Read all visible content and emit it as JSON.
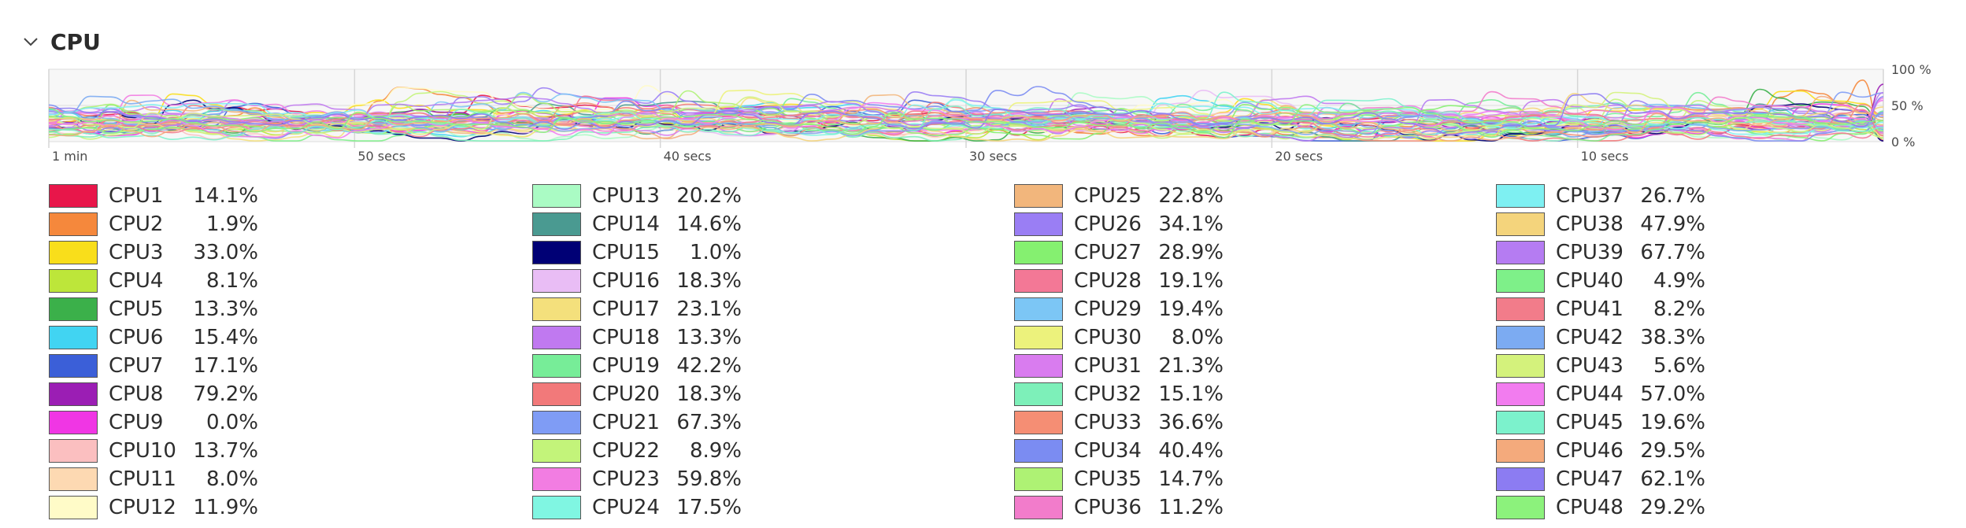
{
  "section": {
    "title": "CPU",
    "chevron_icon": "chevron-down-icon"
  },
  "chart_data": {
    "type": "line",
    "x_ticks": [
      "1 min",
      "50 secs",
      "40 secs",
      "30 secs",
      "20 secs",
      "10 secs"
    ],
    "y_ticks": [
      "100 %",
      "50 %",
      "0 %"
    ],
    "ylim": [
      0,
      100
    ],
    "grid": true
  },
  "cpus": [
    {
      "name": "CPU1",
      "value": "14.1%",
      "color": "#e8164a"
    },
    {
      "name": "CPU2",
      "value": "1.9%",
      "color": "#f5883c"
    },
    {
      "name": "CPU3",
      "value": "33.0%",
      "color": "#f9de1b"
    },
    {
      "name": "CPU4",
      "value": "8.1%",
      "color": "#bde63a"
    },
    {
      "name": "CPU5",
      "value": "13.3%",
      "color": "#3bb04a"
    },
    {
      "name": "CPU6",
      "value": "15.4%",
      "color": "#41d4f2"
    },
    {
      "name": "CPU7",
      "value": "17.1%",
      "color": "#3b5fd8"
    },
    {
      "name": "CPU8",
      "value": "79.2%",
      "color": "#9b1eb4"
    },
    {
      "name": "CPU9",
      "value": "0.0%",
      "color": "#f036e4"
    },
    {
      "name": "CPU10",
      "value": "13.7%",
      "color": "#fbbfc0"
    },
    {
      "name": "CPU11",
      "value": "8.0%",
      "color": "#fdd9b2"
    },
    {
      "name": "CPU12",
      "value": "11.9%",
      "color": "#fffbc8"
    },
    {
      "name": "CPU13",
      "value": "20.2%",
      "color": "#aafbc4"
    },
    {
      "name": "CPU14",
      "value": "14.6%",
      "color": "#4a9a91"
    },
    {
      "name": "CPU15",
      "value": "1.0%",
      "color": "#000075"
    },
    {
      "name": "CPU16",
      "value": "18.3%",
      "color": "#e9bdf5"
    },
    {
      "name": "CPU17",
      "value": "23.1%",
      "color": "#f4e07c"
    },
    {
      "name": "CPU18",
      "value": "13.3%",
      "color": "#c079f0"
    },
    {
      "name": "CPU19",
      "value": "42.2%",
      "color": "#77ed98"
    },
    {
      "name": "CPU20",
      "value": "18.3%",
      "color": "#f2797a"
    },
    {
      "name": "CPU21",
      "value": "67.3%",
      "color": "#7f9cf5"
    },
    {
      "name": "CPU22",
      "value": "8.9%",
      "color": "#c3f47a"
    },
    {
      "name": "CPU23",
      "value": "59.8%",
      "color": "#f27de2"
    },
    {
      "name": "CPU24",
      "value": "17.5%",
      "color": "#80f6e2"
    },
    {
      "name": "CPU25",
      "value": "22.8%",
      "color": "#f2b67c"
    },
    {
      "name": "CPU26",
      "value": "34.1%",
      "color": "#9a7ef4"
    },
    {
      "name": "CPU27",
      "value": "28.9%",
      "color": "#85f070"
    },
    {
      "name": "CPU28",
      "value": "19.1%",
      "color": "#f37896"
    },
    {
      "name": "CPU29",
      "value": "19.4%",
      "color": "#7cc6f5"
    },
    {
      "name": "CPU30",
      "value": "8.0%",
      "color": "#ecf27c"
    },
    {
      "name": "CPU31",
      "value": "21.3%",
      "color": "#d97cef"
    },
    {
      "name": "CPU32",
      "value": "15.1%",
      "color": "#7df0b9"
    },
    {
      "name": "CPU33",
      "value": "36.6%",
      "color": "#f58e74"
    },
    {
      "name": "CPU34",
      "value": "40.4%",
      "color": "#7b8cf2"
    },
    {
      "name": "CPU35",
      "value": "14.7%",
      "color": "#aef274"
    },
    {
      "name": "CPU36",
      "value": "11.2%",
      "color": "#f27ccb"
    },
    {
      "name": "CPU37",
      "value": "26.7%",
      "color": "#7ef0f2"
    },
    {
      "name": "CPU38",
      "value": "47.9%",
      "color": "#f4d47c"
    },
    {
      "name": "CPU39",
      "value": "67.7%",
      "color": "#b57cf2"
    },
    {
      "name": "CPU40",
      "value": "4.9%",
      "color": "#7ef089"
    },
    {
      "name": "CPU41",
      "value": "8.2%",
      "color": "#f27c8a"
    },
    {
      "name": "CPU42",
      "value": "38.3%",
      "color": "#7cabf2"
    },
    {
      "name": "CPU43",
      "value": "5.6%",
      "color": "#d4f27c"
    },
    {
      "name": "CPU44",
      "value": "57.0%",
      "color": "#f27cef"
    },
    {
      "name": "CPU45",
      "value": "19.6%",
      "color": "#7cf2cc"
    },
    {
      "name": "CPU46",
      "value": "29.5%",
      "color": "#f4aa7c"
    },
    {
      "name": "CPU47",
      "value": "62.1%",
      "color": "#8c7cf2"
    },
    {
      "name": "CPU48",
      "value": "29.2%",
      "color": "#8cf27c"
    }
  ]
}
